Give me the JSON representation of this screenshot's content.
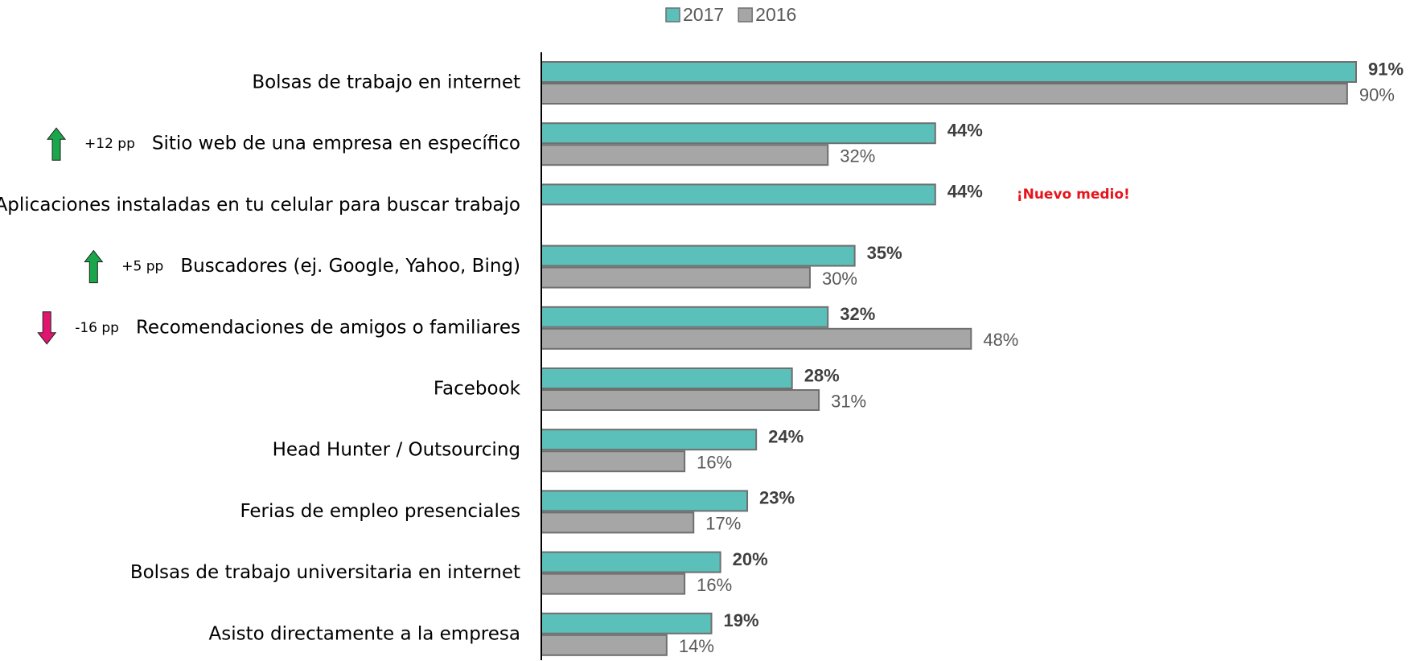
{
  "chart_data": {
    "type": "bar",
    "orientation": "horizontal",
    "categories": [
      "Bolsas de trabajo en internet",
      "Sitio web de una empresa en específico",
      "Aplicaciones instaladas en tu celular para buscar trabajo",
      "Buscadores (ej. Google, Yahoo, Bing)",
      "Recomendaciones de amigos o familiares",
      "Facebook",
      "Head Hunter / Outsourcing",
      "Ferias de empleo presenciales",
      "Bolsas de trabajo universitaria en internet",
      "Asisto directamente a la empresa"
    ],
    "series": [
      {
        "name": "2017",
        "color": "#5bbfba",
        "values": [
          91,
          44,
          44,
          35,
          32,
          28,
          24,
          23,
          20,
          19
        ],
        "value_labels": [
          "91%",
          "44%",
          "44%",
          "35%",
          "32%",
          "28%",
          "24%",
          "23%",
          "20%",
          "19%"
        ]
      },
      {
        "name": "2016",
        "color": "#a6a6a6",
        "values": [
          90,
          32,
          null,
          30,
          48,
          31,
          16,
          17,
          16,
          14
        ],
        "value_labels": [
          "90%",
          "32%",
          null,
          "30%",
          "48%",
          "31%",
          "16%",
          "17%",
          "16%",
          "14%"
        ]
      }
    ],
    "changes": [
      null,
      "+12 pp",
      null,
      "+5 pp",
      "-16 pp",
      null,
      null,
      null,
      null,
      null
    ],
    "change_arrows": [
      null,
      "up",
      null,
      "up",
      "down",
      null,
      null,
      null,
      null,
      null
    ],
    "notes": [
      null,
      null,
      "¡Nuevo medio!",
      null,
      null,
      null,
      null,
      null,
      null,
      null
    ],
    "xlim": [
      0,
      100
    ],
    "legend": "top"
  }
}
